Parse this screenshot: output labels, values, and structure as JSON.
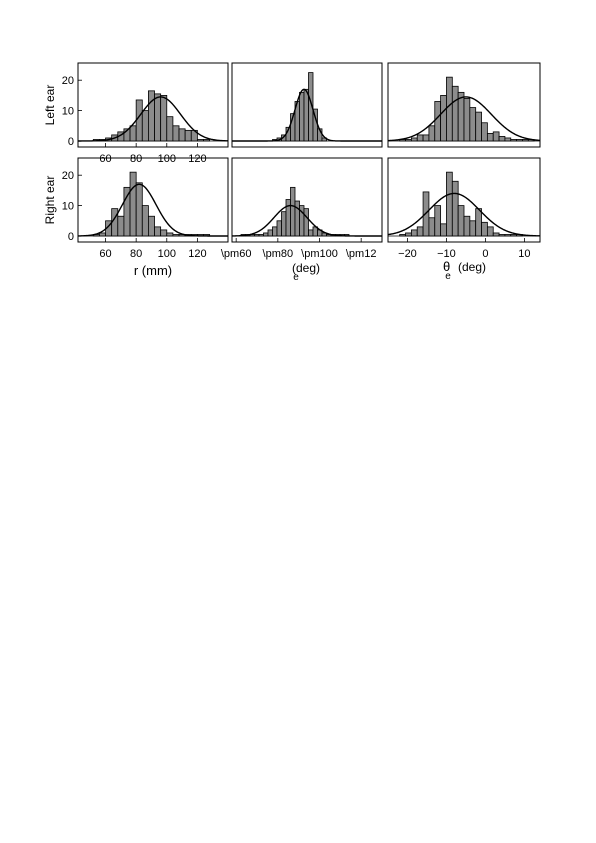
{
  "chart_data": [
    {
      "type": "bar",
      "row": "Left ear",
      "column": "r",
      "xlim": [
        42,
        140
      ],
      "ylim": [
        0,
        25
      ],
      "xticks": [
        60,
        80,
        100,
        120
      ],
      "yticks": [
        0,
        10,
        20
      ],
      "xlabel": "",
      "ylabel": "Left ear",
      "bin_width": 4,
      "bin_starts": [
        52,
        56,
        60,
        64,
        68,
        72,
        76,
        80,
        84,
        88,
        92,
        96,
        100,
        104,
        108,
        112,
        116,
        120,
        124
      ],
      "values": [
        0.5,
        0.5,
        1,
        2,
        3,
        4,
        5,
        13.5,
        10,
        16.5,
        15.5,
        15,
        8,
        5,
        4,
        3.5,
        3.5,
        0.5,
        0.5
      ],
      "fit": {
        "mean": 96,
        "sd": 13,
        "peak": 14.5
      }
    },
    {
      "type": "bar",
      "row": "Left ear",
      "column": "phi",
      "xlim": [
        40,
        140
      ],
      "ylim": [
        0,
        25
      ],
      "xticks": [],
      "yticks": [],
      "xlabel": "",
      "ylabel": "",
      "bin_width": 3,
      "bin_starts": [
        67,
        70,
        73,
        76,
        79,
        82,
        85,
        88,
        91,
        94,
        97,
        100
      ],
      "values": [
        0.5,
        1,
        2,
        4.5,
        9,
        13,
        16,
        17,
        22.5,
        10.5,
        4,
        1
      ],
      "fit": {
        "mean": 88,
        "sd": 6,
        "peak": 17
      }
    },
    {
      "type": "bar",
      "row": "Left ear",
      "column": "theta",
      "xlim": [
        -25,
        14
      ],
      "ylim": [
        0,
        25
      ],
      "xticks": [],
      "yticks": [],
      "xlabel": "",
      "ylabel": "",
      "bin_width": 1.5,
      "bin_starts": [
        -22,
        -20.5,
        -19,
        -17.5,
        -16,
        -14.5,
        -13,
        -11.5,
        -10,
        -8.5,
        -7,
        -5.5,
        -4,
        -2.5,
        -1,
        0.5,
        2,
        3.5,
        5,
        6.5,
        8,
        9.5,
        11
      ],
      "values": [
        0.5,
        0.5,
        1,
        2,
        2,
        5,
        13,
        15,
        21,
        18,
        16,
        14,
        11,
        9.5,
        6,
        2.5,
        3,
        1.5,
        1,
        0.5,
        0.5,
        0.5,
        0.5
      ],
      "fit": {
        "mean": -5,
        "sd": 6.5,
        "peak": 14.5
      }
    },
    {
      "type": "bar",
      "row": "Right ear",
      "column": "r",
      "xlim": [
        42,
        140
      ],
      "ylim": [
        0,
        25
      ],
      "xticks": [
        60,
        80,
        100,
        120
      ],
      "yticks": [
        0,
        10,
        20
      ],
      "xlabel": "r (mm)",
      "ylabel": "Right ear",
      "bin_width": 4,
      "bin_starts": [
        52,
        56,
        60,
        64,
        68,
        72,
        76,
        80,
        84,
        88,
        92,
        96,
        100,
        104,
        108,
        112,
        116,
        120,
        124
      ],
      "values": [
        0.5,
        1,
        5,
        9,
        6.5,
        16,
        21,
        17.5,
        10,
        6.5,
        3,
        2,
        1,
        0.5,
        0.5,
        0.5,
        0.5,
        0.5,
        0.5
      ],
      "fit": {
        "mean": 82,
        "sd": 11,
        "peak": 17
      }
    },
    {
      "type": "bar",
      "row": "Right ear",
      "column": "phi",
      "xlim": [
        40,
        140
      ],
      "ylim": [
        0,
        25
      ],
      "xticks": [
        "\\pm60",
        "\\pm80",
        "\\pm100",
        "\\pm12"
      ],
      "yticks": [],
      "xlabel_main": "(deg)",
      "xlabel_sub": "e",
      "ylabel": "",
      "bin_width": 3,
      "bin_starts": [
        46,
        49,
        52,
        55,
        58,
        61,
        64,
        67,
        70,
        73,
        76,
        79,
        82,
        85,
        88,
        91,
        94,
        97,
        100,
        103,
        106,
        109,
        112,
        115
      ],
      "values": [
        0.5,
        0.5,
        0.5,
        0.5,
        0.5,
        1,
        2,
        3,
        5,
        8,
        12,
        16,
        11.5,
        10,
        9,
        2,
        3,
        2,
        1,
        0.5,
        0.5,
        0.5,
        0.5,
        0.5
      ],
      "fit": {
        "mean": 79,
        "sd": 11,
        "peak": 10
      }
    },
    {
      "type": "bar",
      "row": "Right ear",
      "column": "theta",
      "xlim": [
        -25,
        14
      ],
      "ylim": [
        0,
        25
      ],
      "xticks": [
        -20,
        -10,
        0,
        10
      ],
      "yticks": [],
      "xlabel_main": "θ",
      "xlabel_sub": "e",
      "xlabel_unit": "(deg)",
      "ylabel": "",
      "bin_width": 1.5,
      "bin_starts": [
        -22,
        -20.5,
        -19,
        -17.5,
        -16,
        -14.5,
        -13,
        -11.5,
        -10,
        -8.5,
        -7,
        -5.5,
        -4,
        -2.5,
        -1,
        0.5,
        2,
        3.5,
        5,
        6.5,
        8
      ],
      "values": [
        0.5,
        1,
        2,
        3,
        14.5,
        6,
        10,
        4,
        21,
        18,
        10,
        6.5,
        5,
        9,
        4.5,
        3,
        1,
        0.5,
        0.5,
        0.5,
        0.5
      ],
      "fit": {
        "mean": -8,
        "sd": 6.5,
        "peak": 14
      }
    }
  ]
}
